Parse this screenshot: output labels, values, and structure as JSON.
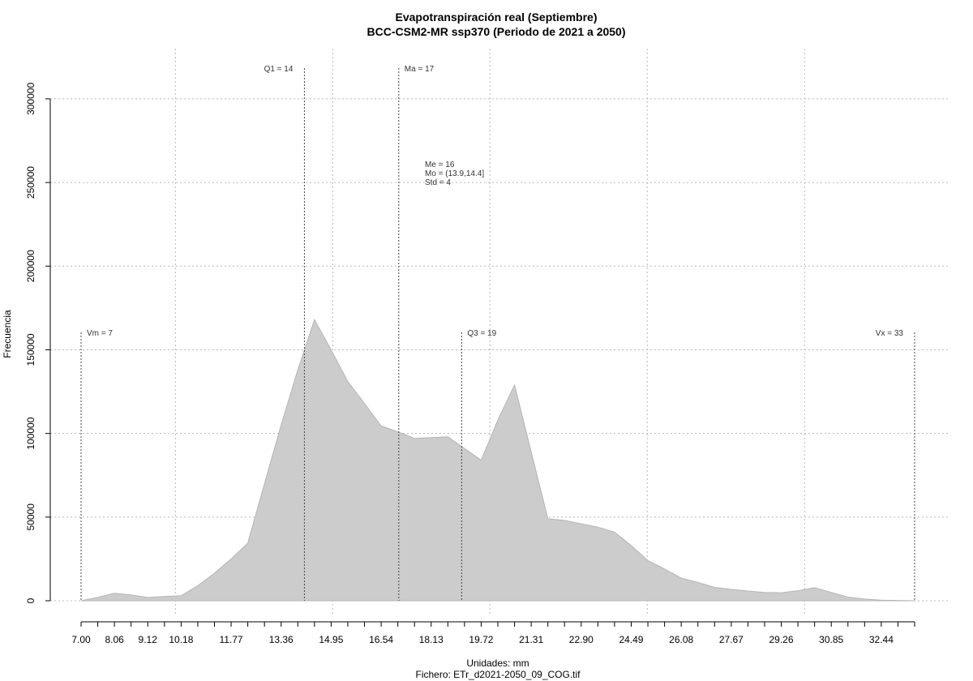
{
  "chart_data": {
    "type": "area",
    "title": "Evapotranspiración real (Septiembre)",
    "subtitle": "BCC-CSM2-MR ssp370 (Periodo de 2021 a 2050)",
    "xlabel": "Unidades: mm",
    "xlabel2": "Fichero: ETr_d2021-2050_09_COG.tif",
    "ylabel": "Frecuencia",
    "xlim": [
      7.0,
      33.5
    ],
    "ylim": [
      0,
      330000
    ],
    "fill_color": "#cccccc",
    "x_ticks": [
      "7.00",
      "8.06",
      "9.12",
      "10.18",
      "11.77",
      "13.36",
      "14.95",
      "16.54",
      "18.13",
      "19.72",
      "21.31",
      "22.90",
      "24.49",
      "26.08",
      "27.67",
      "29.26",
      "30.85",
      "32.44"
    ],
    "y_ticks": [
      "0",
      "50000",
      "100000",
      "150000",
      "200000",
      "250000",
      "300000"
    ],
    "x": [
      7.0,
      7.53,
      8.06,
      8.59,
      9.12,
      9.65,
      10.18,
      10.71,
      11.24,
      11.77,
      12.3,
      12.83,
      13.36,
      13.89,
      14.42,
      14.95,
      15.48,
      16.01,
      16.54,
      17.07,
      17.6,
      18.13,
      18.66,
      19.19,
      19.72,
      20.25,
      20.78,
      21.31,
      21.84,
      22.37,
      22.9,
      23.43,
      23.96,
      24.49,
      25.02,
      25.55,
      26.08,
      26.61,
      27.14,
      27.67,
      28.2,
      28.73,
      29.26,
      29.79,
      30.32,
      30.85,
      31.38,
      31.91,
      32.44,
      32.97,
      33.5
    ],
    "y": [
      0,
      2000,
      4500,
      3500,
      2000,
      2500,
      3000,
      9000,
      16500,
      25000,
      34500,
      70000,
      105000,
      138000,
      168000,
      150000,
      131000,
      118000,
      104500,
      101000,
      97000,
      97500,
      98000,
      91000,
      84000,
      108000,
      129000,
      89000,
      49000,
      48000,
      46000,
      44000,
      41000,
      33000,
      24000,
      19000,
      13500,
      11000,
      8000,
      6800,
      5800,
      5000,
      4800,
      6000,
      7800,
      5000,
      2200,
      1000,
      400,
      200,
      0
    ],
    "stat_lines": [
      {
        "label": "Vm = 7",
        "x": 7.0,
        "label_side": "right",
        "level": "low"
      },
      {
        "label": "Q1 = 14",
        "x": 14.1,
        "label_side": "left",
        "level": "high"
      },
      {
        "label": "Ma = 17",
        "x": 17.1,
        "label_side": "right",
        "level": "high"
      },
      {
        "label": "Q3 = 19",
        "x": 19.1,
        "label_side": "right",
        "level": "low"
      },
      {
        "label": "Vx = 33",
        "x": 33.5,
        "label_side": "left",
        "level": "low"
      }
    ],
    "stats_box": [
      "Me = 16",
      "Mo = (13.9,14.4]",
      "Std = 4"
    ],
    "grid": true
  }
}
